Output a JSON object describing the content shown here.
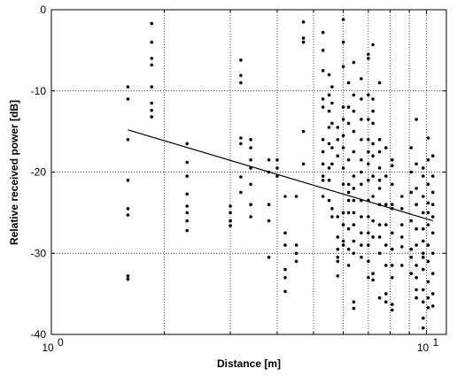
{
  "chart_data": {
    "type": "scatter",
    "title": "",
    "xlabel": "Distance [m]",
    "ylabel": "Relative received power [dB]",
    "xscale": "log",
    "xlim": [
      1,
      11.3
    ],
    "ylim": [
      -40,
      0
    ],
    "x_ticks": [
      {
        "value": 1,
        "base": "10",
        "exp": "0"
      },
      {
        "value": 10,
        "base": "10",
        "exp": "1"
      }
    ],
    "y_ticks": [
      0,
      -10,
      -20,
      -30,
      -40
    ],
    "grid": true,
    "legend": "none",
    "series": [
      {
        "marker": "dot",
        "color": "#000000",
        "points": [
          [
            1.6,
            -9.5
          ],
          [
            1.6,
            -11
          ],
          [
            1.6,
            -16
          ],
          [
            1.6,
            -21
          ],
          [
            1.6,
            -24.5
          ],
          [
            1.6,
            -25.3
          ],
          [
            1.6,
            -32.8
          ],
          [
            1.6,
            -33.2
          ],
          [
            1.85,
            -1.7
          ],
          [
            1.85,
            -4
          ],
          [
            1.85,
            -6
          ],
          [
            1.85,
            -6.8
          ],
          [
            1.85,
            -9.5
          ],
          [
            1.85,
            -11.5
          ],
          [
            1.85,
            -12.4
          ],
          [
            1.85,
            -13.2
          ],
          [
            2.3,
            -16.5
          ],
          [
            2.3,
            -18.8
          ],
          [
            2.3,
            -20.5
          ],
          [
            2.3,
            -22.7
          ],
          [
            2.3,
            -24.2
          ],
          [
            2.3,
            -25
          ],
          [
            2.3,
            -26
          ],
          [
            2.3,
            -27.2
          ],
          [
            3.0,
            -24.2
          ],
          [
            3.0,
            -25
          ],
          [
            3.0,
            -26
          ],
          [
            3.0,
            -26.6
          ],
          [
            3.2,
            -6.2
          ],
          [
            3.2,
            -8.1
          ],
          [
            3.2,
            -9
          ],
          [
            3.2,
            -15.8
          ],
          [
            3.2,
            -16.5
          ],
          [
            3.2,
            -20.6
          ],
          [
            3.2,
            -22.5
          ],
          [
            3.4,
            -16
          ],
          [
            3.4,
            -17
          ],
          [
            3.4,
            -18.5
          ],
          [
            3.4,
            -19.5
          ],
          [
            3.4,
            -21.5
          ],
          [
            3.4,
            -24
          ],
          [
            3.4,
            -25.5
          ],
          [
            3.8,
            -18.5
          ],
          [
            3.8,
            -20
          ],
          [
            3.8,
            -24
          ],
          [
            3.8,
            -26
          ],
          [
            3.8,
            -30.5
          ],
          [
            4.0,
            -18.5
          ],
          [
            4.0,
            -19.5
          ],
          [
            4.0,
            -20.5
          ],
          [
            4.2,
            -23
          ],
          [
            4.2,
            -27.5
          ],
          [
            4.2,
            -29
          ],
          [
            4.2,
            -32
          ],
          [
            4.2,
            -33
          ],
          [
            4.2,
            -34.7
          ],
          [
            4.5,
            -23
          ],
          [
            4.5,
            -29
          ],
          [
            4.5,
            -30
          ],
          [
            4.5,
            -31
          ],
          [
            4.7,
            -1.5
          ],
          [
            4.7,
            -3.5
          ],
          [
            4.7,
            -4
          ],
          [
            4.7,
            -15
          ],
          [
            4.7,
            -19
          ],
          [
            5.3,
            -2.8
          ],
          [
            5.3,
            -5
          ],
          [
            5.3,
            -7.5
          ],
          [
            5.3,
            -11
          ],
          [
            5.3,
            -12
          ],
          [
            5.3,
            -16
          ],
          [
            5.3,
            -17.5
          ],
          [
            5.3,
            -19
          ],
          [
            5.3,
            -20.5
          ],
          [
            5.3,
            -21
          ],
          [
            5.3,
            -23
          ],
          [
            5.5,
            -8
          ],
          [
            5.5,
            -10.5
          ],
          [
            5.5,
            -12.5
          ],
          [
            5.5,
            -14.5
          ],
          [
            5.5,
            -16.5
          ],
          [
            5.5,
            -19.5
          ],
          [
            5.5,
            -21
          ],
          [
            5.5,
            -23.5
          ],
          [
            5.6,
            -9.5
          ],
          [
            5.6,
            -11.5
          ],
          [
            5.6,
            -14
          ],
          [
            5.6,
            -17
          ],
          [
            5.6,
            -19
          ],
          [
            5.6,
            -24.5
          ],
          [
            5.6,
            -25.5
          ],
          [
            5.8,
            -14.5
          ],
          [
            5.8,
            -16
          ],
          [
            5.8,
            -18
          ],
          [
            5.8,
            -25.5
          ],
          [
            5.8,
            -28
          ],
          [
            5.8,
            -29.5
          ],
          [
            5.8,
            -30.5
          ],
          [
            5.8,
            -31
          ],
          [
            5.8,
            -32.8
          ],
          [
            6.0,
            -1.2
          ],
          [
            6.0,
            -4
          ],
          [
            6.0,
            -7
          ],
          [
            6.0,
            -12
          ],
          [
            6.0,
            -13.5
          ],
          [
            6.0,
            -15.5
          ],
          [
            6.0,
            -17
          ],
          [
            6.0,
            -19.5
          ],
          [
            6.0,
            -21.5
          ],
          [
            6.0,
            -25
          ],
          [
            6.0,
            -26.5
          ],
          [
            6.0,
            -28.5
          ],
          [
            6.0,
            -29
          ],
          [
            6.2,
            -9
          ],
          [
            6.2,
            -12
          ],
          [
            6.2,
            -14
          ],
          [
            6.2,
            -18.5
          ],
          [
            6.2,
            -21.5
          ],
          [
            6.2,
            -22.5
          ],
          [
            6.2,
            -23.5
          ],
          [
            6.2,
            -25
          ],
          [
            6.2,
            -27
          ],
          [
            6.2,
            -29.5
          ],
          [
            6.2,
            -31.5
          ],
          [
            6.4,
            -6.5
          ],
          [
            6.4,
            -10.5
          ],
          [
            6.4,
            -12.5
          ],
          [
            6.4,
            -15
          ],
          [
            6.4,
            -17.5
          ],
          [
            6.4,
            -20.5
          ],
          [
            6.4,
            -22
          ],
          [
            6.4,
            -23.5
          ],
          [
            6.4,
            -25
          ],
          [
            6.4,
            -26.5
          ],
          [
            6.4,
            -28.5
          ],
          [
            6.4,
            -30
          ],
          [
            6.4,
            -36
          ],
          [
            6.4,
            -36.8
          ],
          [
            6.7,
            -8.5
          ],
          [
            6.7,
            -11
          ],
          [
            6.7,
            -13.5
          ],
          [
            6.7,
            -16
          ],
          [
            6.7,
            -18.5
          ],
          [
            6.7,
            -20
          ],
          [
            6.7,
            -21.5
          ],
          [
            6.7,
            -23.5
          ],
          [
            6.7,
            -25.5
          ],
          [
            6.7,
            -27.5
          ],
          [
            6.7,
            -29
          ],
          [
            6.7,
            -30.5
          ],
          [
            7.0,
            -5.5
          ],
          [
            7.0,
            -6
          ],
          [
            7.0,
            -10.5
          ],
          [
            7.0,
            -13.5
          ],
          [
            7.0,
            -16
          ],
          [
            7.0,
            -17.5
          ],
          [
            7.0,
            -19
          ],
          [
            7.0,
            -21
          ],
          [
            7.0,
            -23.5
          ],
          [
            7.0,
            -25.5
          ],
          [
            7.0,
            -27.5
          ],
          [
            7.0,
            -29
          ],
          [
            7.0,
            -31
          ],
          [
            7.0,
            -33
          ],
          [
            7.2,
            -4.3
          ],
          [
            7.2,
            -11
          ],
          [
            7.2,
            -12.5
          ],
          [
            7.2,
            -14
          ],
          [
            7.2,
            -16.5
          ],
          [
            7.2,
            -18
          ],
          [
            7.2,
            -20.5
          ],
          [
            7.2,
            -23
          ],
          [
            7.2,
            -26
          ],
          [
            7.2,
            -28
          ],
          [
            7.2,
            -32.5
          ],
          [
            7.2,
            -33.3
          ],
          [
            7.5,
            -9
          ],
          [
            7.5,
            -16
          ],
          [
            7.5,
            -17.5
          ],
          [
            7.5,
            -19.5
          ],
          [
            7.5,
            -21
          ],
          [
            7.5,
            -22
          ],
          [
            7.5,
            -24
          ],
          [
            7.5,
            -26.5
          ],
          [
            7.5,
            -28
          ],
          [
            7.5,
            -30
          ],
          [
            7.5,
            -35.5
          ],
          [
            7.8,
            -17
          ],
          [
            7.8,
            -20.5
          ],
          [
            7.8,
            -24
          ],
          [
            7.8,
            -26.5
          ],
          [
            7.8,
            -29
          ],
          [
            7.8,
            -31.5
          ],
          [
            7.8,
            -35
          ],
          [
            7.8,
            -36
          ],
          [
            8.1,
            -18.5
          ],
          [
            8.1,
            -19.2
          ],
          [
            8.1,
            -21.5
          ],
          [
            8.1,
            -24
          ],
          [
            8.1,
            -24.5
          ],
          [
            8.1,
            -27.5
          ],
          [
            8.1,
            -29.5
          ],
          [
            8.1,
            -31.5
          ],
          [
            8.1,
            -33
          ],
          [
            8.1,
            -36.3
          ],
          [
            8.1,
            -37
          ],
          [
            8.6,
            -23
          ],
          [
            8.6,
            -24.5
          ],
          [
            8.6,
            -26.5
          ],
          [
            8.6,
            -28
          ],
          [
            8.6,
            -29.2
          ],
          [
            8.6,
            -31.5
          ],
          [
            9.1,
            -17
          ],
          [
            9.1,
            -20
          ],
          [
            9.1,
            -22.5
          ],
          [
            9.1,
            -26
          ],
          [
            9.1,
            -29.5
          ],
          [
            9.1,
            -30.5
          ],
          [
            9.1,
            -32.5
          ],
          [
            9.4,
            -13.5
          ],
          [
            9.4,
            -19
          ],
          [
            9.4,
            -22
          ],
          [
            9.4,
            -24
          ],
          [
            9.4,
            -27
          ],
          [
            9.4,
            -29
          ],
          [
            9.4,
            -31.5
          ],
          [
            9.4,
            -33
          ],
          [
            9.4,
            -34.5
          ],
          [
            9.4,
            -35.5
          ],
          [
            9.8,
            -19.5
          ],
          [
            9.8,
            -20.5
          ],
          [
            9.8,
            -23
          ],
          [
            9.8,
            -25
          ],
          [
            9.8,
            -27
          ],
          [
            9.8,
            -28.5
          ],
          [
            9.8,
            -30
          ],
          [
            9.8,
            -30.5
          ],
          [
            9.8,
            -32
          ],
          [
            9.8,
            -34.5
          ],
          [
            9.8,
            -36
          ],
          [
            9.8,
            -38
          ],
          [
            9.8,
            -39.2
          ],
          [
            10.1,
            -15.8
          ],
          [
            10.1,
            -18.5
          ],
          [
            10.1,
            -21.5
          ],
          [
            10.1,
            -23.8
          ],
          [
            10.1,
            -25
          ],
          [
            10.1,
            -26.5
          ],
          [
            10.1,
            -29
          ],
          [
            10.1,
            -31
          ],
          [
            10.1,
            -33.5
          ],
          [
            10.1,
            -35.5
          ],
          [
            10.1,
            -36.7
          ],
          [
            10.4,
            -18
          ],
          [
            10.4,
            -20.5
          ],
          [
            10.4,
            -22.5
          ],
          [
            10.4,
            -24
          ],
          [
            10.4,
            -25.5
          ],
          [
            10.4,
            -27.5
          ],
          [
            10.4,
            -30
          ],
          [
            10.4,
            -32.5
          ],
          [
            10.4,
            -35
          ],
          [
            10.4,
            -36.5
          ]
        ]
      },
      {
        "type": "line",
        "color": "#000000",
        "points": [
          [
            1.6,
            -14.8
          ],
          [
            10.4,
            -26
          ]
        ]
      }
    ]
  }
}
